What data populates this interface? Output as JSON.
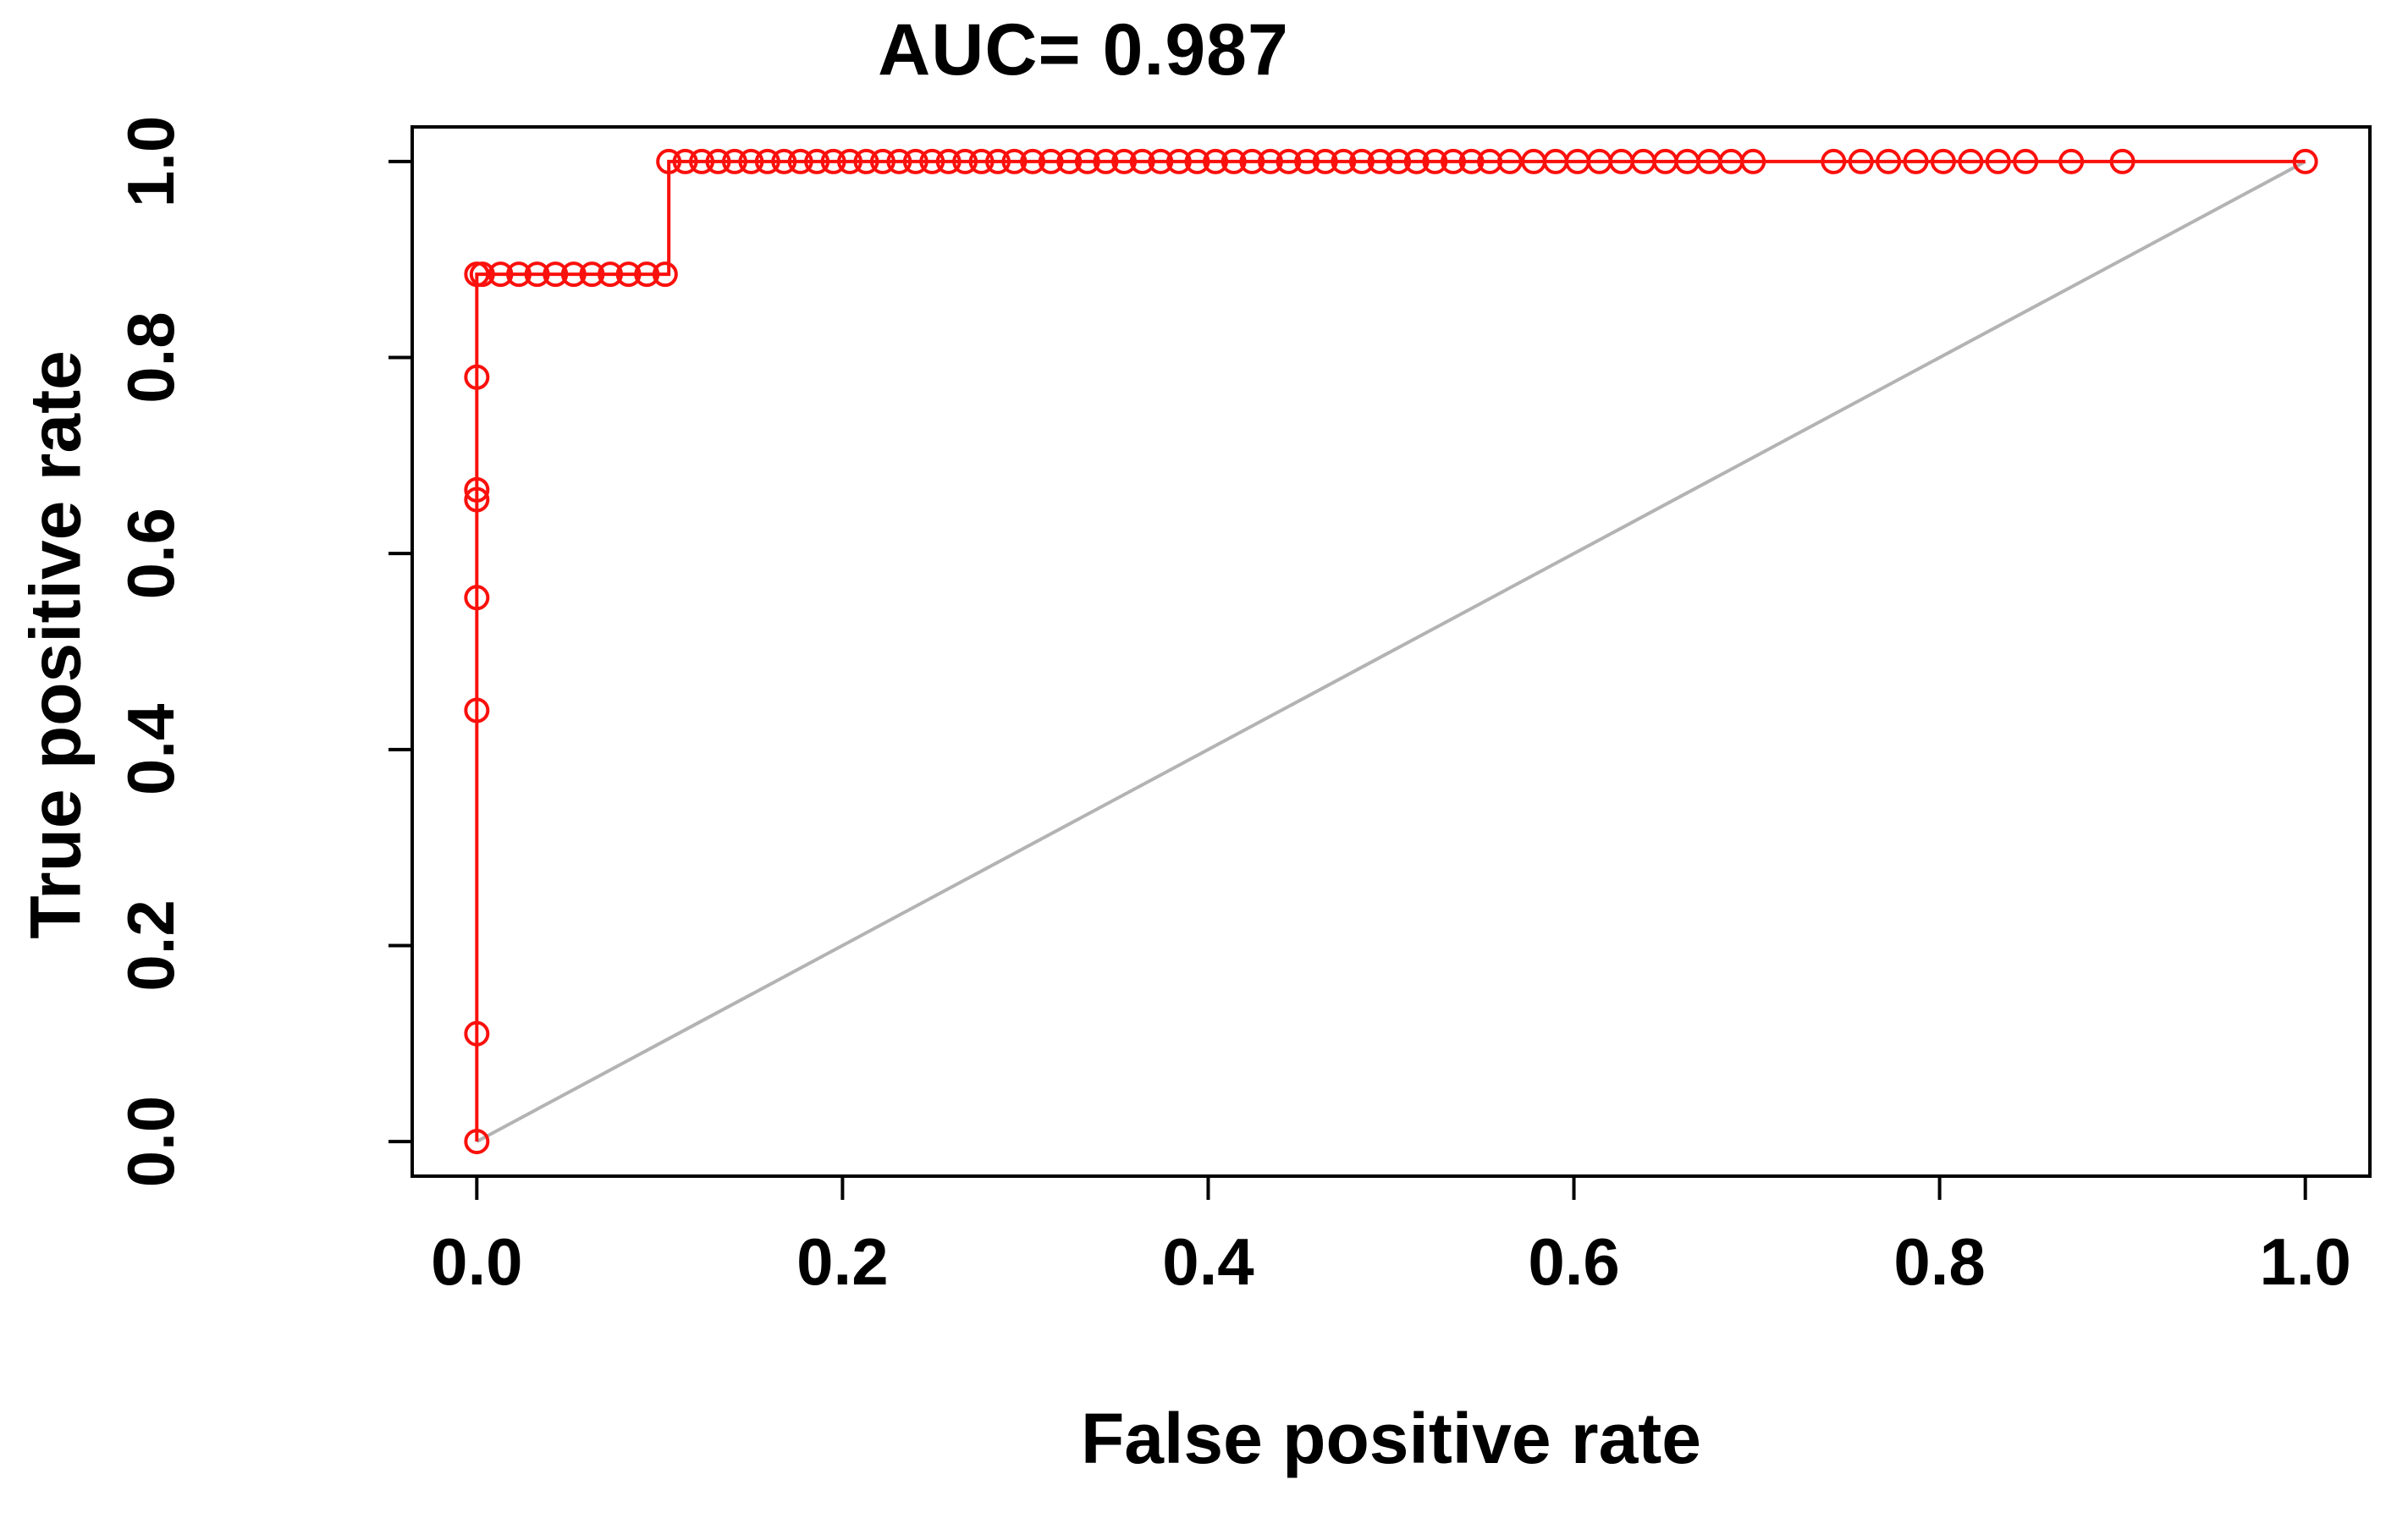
{
  "chart_data": {
    "type": "line",
    "subtype": "roc-curve-step-plot",
    "title": "AUC= 0.987",
    "auc": 0.987,
    "xlabel": "False positive rate",
    "ylabel": "True positive rate",
    "xlim": [
      0,
      1
    ],
    "ylim": [
      0,
      1
    ],
    "xticks": [
      "0.0",
      "0.2",
      "0.4",
      "0.6",
      "0.8",
      "1.0"
    ],
    "yticks": [
      "0.0",
      "0.2",
      "0.4",
      "0.6",
      "0.8",
      "1.0"
    ],
    "grid": false,
    "legend": "none",
    "colors": {
      "roc": "#fa100c",
      "diagonal": "#b3b3b3",
      "axis": "#000000",
      "background": "#ffffff"
    },
    "roc_curve": {
      "name": "ROC curve",
      "color": "#fa100c",
      "marker": "open-circle",
      "step_points": [
        [
          0,
          0
        ],
        [
          0,
          0.11
        ],
        [
          0,
          0.44
        ],
        [
          0,
          0.555
        ],
        [
          0,
          0.655
        ],
        [
          0,
          0.665
        ],
        [
          0,
          0.78
        ],
        [
          0,
          0.885
        ],
        [
          0.105,
          0.885
        ],
        [
          0.105,
          1.0
        ],
        [
          1.0,
          1.0
        ]
      ],
      "markers": {
        "x0_column": [
          0.0,
          0.11,
          0.44,
          0.555,
          0.655,
          0.665,
          0.78,
          0.885
        ],
        "row_089": {
          "y": 0.885,
          "x": [
            0.003,
            0.013,
            0.023,
            0.033,
            0.043,
            0.053,
            0.063,
            0.073,
            0.083,
            0.093,
            0.103
          ]
        },
        "row_100": {
          "y": 1.0,
          "x": [
            0.105,
            0.114,
            0.123,
            0.132,
            0.141,
            0.15,
            0.159,
            0.168,
            0.177,
            0.186,
            0.195,
            0.204,
            0.213,
            0.222,
            0.231,
            0.24,
            0.249,
            0.258,
            0.267,
            0.276,
            0.285,
            0.294,
            0.304,
            0.314,
            0.324,
            0.334,
            0.344,
            0.354,
            0.364,
            0.374,
            0.384,
            0.394,
            0.404,
            0.414,
            0.424,
            0.434,
            0.444,
            0.454,
            0.464,
            0.474,
            0.484,
            0.494,
            0.504,
            0.514,
            0.524,
            0.534,
            0.544,
            0.554,
            0.565,
            0.578,
            0.59,
            0.602,
            0.614,
            0.626,
            0.638,
            0.65,
            0.662,
            0.674,
            0.686,
            0.698,
            0.742,
            0.757,
            0.772,
            0.787,
            0.802,
            0.817,
            0.832,
            0.847,
            0.872,
            0.9,
            1.0
          ]
        }
      }
    },
    "reference_line": {
      "name": "chance diagonal",
      "color": "#b3b3b3",
      "points": [
        [
          0,
          0
        ],
        [
          1,
          1
        ]
      ]
    }
  }
}
